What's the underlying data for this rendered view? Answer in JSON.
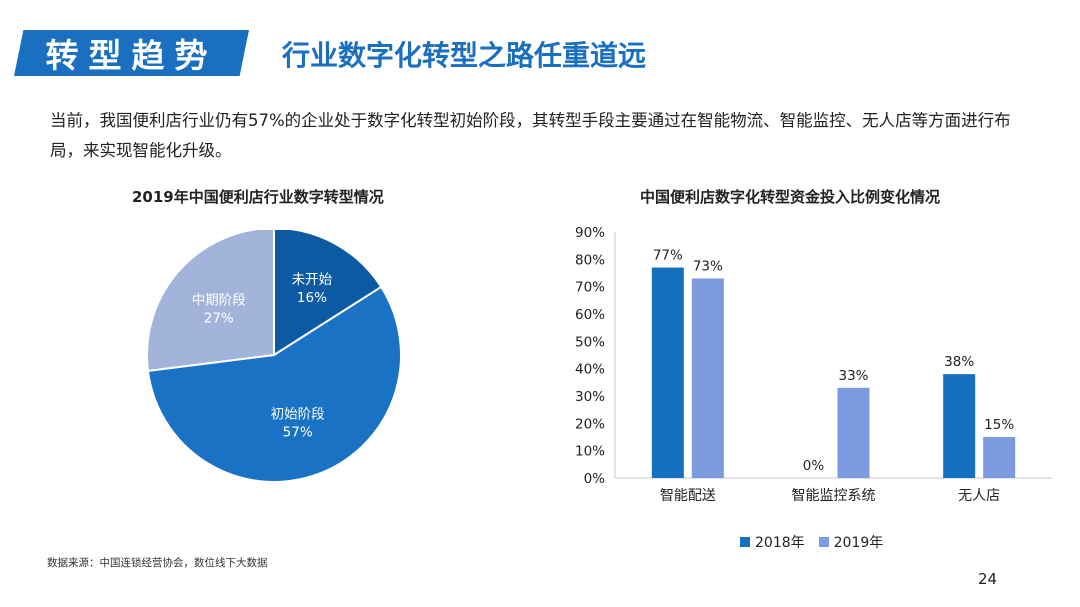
{
  "header": {
    "badge": "转型趋势",
    "headline": "行业数字化转型之路任重道远"
  },
  "intro": "当前，我国便利店行业仍有57%的企业处于数字化转型初始阶段，其转型手段主要通过在智能物流、智能监控、无人店等方面进行布局，来实现智能化升级。",
  "footer": {
    "source": "数据来源：中国连锁经营协会，数位线下大数据",
    "page": "24"
  },
  "chart_data": [
    {
      "type": "pie",
      "title": "2019年中国便利店行业数字转型情况",
      "slices": [
        {
          "label": "未开始",
          "value": 16,
          "text": "16%",
          "color": "#0b5aa3"
        },
        {
          "label": "初始阶段",
          "value": 57,
          "text": "57%",
          "color": "#1a72c4"
        },
        {
          "label": "中期阶段",
          "value": 27,
          "text": "27%",
          "color": "#a3b4db"
        }
      ]
    },
    {
      "type": "bar",
      "title": "中国便利店数字化转型资金投入比例变化情况",
      "categories": [
        "智能配送",
        "智能监控系统",
        "无人店"
      ],
      "series": [
        {
          "name": "2018年",
          "values": [
            77,
            0,
            38
          ],
          "labels": [
            "77%",
            "0%",
            "38%"
          ],
          "color": "#1670c0"
        },
        {
          "name": "2019年",
          "values": [
            73,
            33,
            15
          ],
          "labels": [
            "73%",
            "33%",
            "15%"
          ],
          "color": "#7b9be0"
        }
      ],
      "ylim": [
        0,
        90
      ],
      "yticks": [
        "0%",
        "10%",
        "20%",
        "30%",
        "40%",
        "50%",
        "60%",
        "70%",
        "80%",
        "90%"
      ]
    }
  ]
}
